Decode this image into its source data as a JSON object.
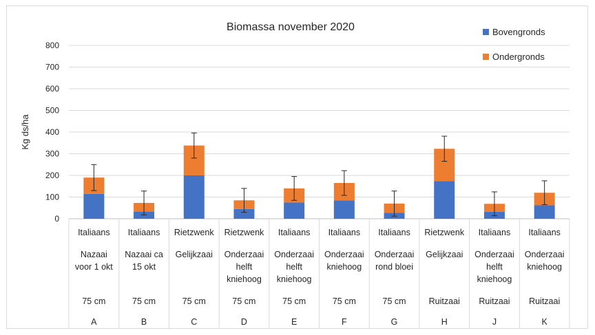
{
  "chart_data": {
    "type": "bar",
    "stacked": true,
    "title": "Biomassa november 2020",
    "ylabel": "Kg ds/ha",
    "xlabel": "",
    "ylim": [
      0,
      800
    ],
    "yticks": [
      0,
      100,
      200,
      300,
      400,
      500,
      600,
      700,
      800
    ],
    "grid": true,
    "legend_position": "top-right",
    "categories": [
      "A",
      "B",
      "C",
      "D",
      "E",
      "F",
      "G",
      "H",
      "J",
      "K"
    ],
    "category_labels": [
      {
        "species": "Italiaans",
        "method": [
          "Nazaai",
          "voor 1 okt"
        ],
        "spacing": "75 cm",
        "code": "A"
      },
      {
        "species": "Italiaans",
        "method": [
          "Nazaai ca",
          "15 okt"
        ],
        "spacing": "75 cm",
        "code": "B"
      },
      {
        "species": "Rietzwenk",
        "method": [
          "Gelijkzaai"
        ],
        "spacing": "75 cm",
        "code": "C"
      },
      {
        "species": "Rietzwenk",
        "method": [
          "Onderzaai",
          "helft",
          "kniehoog"
        ],
        "spacing": "75 cm",
        "code": "D"
      },
      {
        "species": "Italiaans",
        "method": [
          "Onderzaai",
          "helft",
          "kniehoog"
        ],
        "spacing": "75 cm",
        "code": "E"
      },
      {
        "species": "Italiaans",
        "method": [
          "Onderzaai",
          "kniehoog"
        ],
        "spacing": "75 cm",
        "code": "F"
      },
      {
        "species": "Italiaans",
        "method": [
          "Onderzaai",
          "rond bloei"
        ],
        "spacing": "75 cm",
        "code": "G"
      },
      {
        "species": "Rietzwenk",
        "method": [
          "Gelijkzaai"
        ],
        "spacing": "Ruitzaai",
        "code": "H"
      },
      {
        "species": "Italiaans",
        "method": [
          "Onderzaai",
          "helft",
          "kniehoog"
        ],
        "spacing": "Ruitzaai",
        "code": "J"
      },
      {
        "species": "Italiaans",
        "method": [
          "Onderzaai",
          "kniehoog"
        ],
        "spacing": "Ruitzaai",
        "code": "K"
      }
    ],
    "series": [
      {
        "name": "Bovengronds",
        "color": "#4472c4",
        "values": [
          115,
          33,
          200,
          45,
          75,
          85,
          28,
          173,
          32,
          62
        ]
      },
      {
        "name": "Ondergronds",
        "color": "#ed7d31",
        "values": [
          75,
          40,
          138,
          40,
          65,
          80,
          42,
          150,
          37,
          58
        ]
      }
    ],
    "error_bars": {
      "values": [
        60,
        55,
        58,
        55,
        55,
        57,
        58,
        58,
        55,
        55
      ],
      "color": "#262626"
    }
  }
}
